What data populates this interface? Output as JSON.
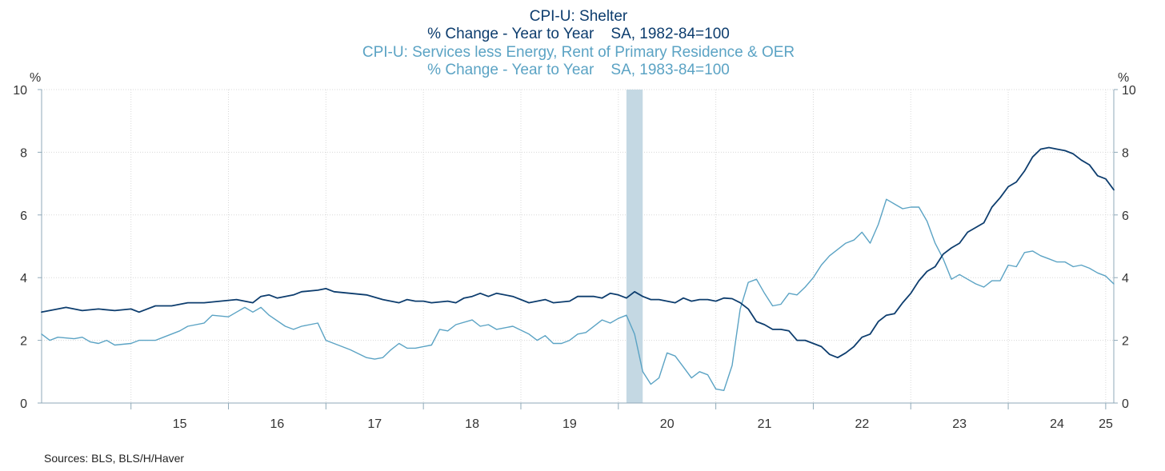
{
  "titles": {
    "line1": "CPI-U: Shelter",
    "line2": "% Change - Year to Year    SA, 1982-84=100",
    "line3": "CPI-U: Services less Energy, Rent of Primary Residence & OER",
    "line4": "% Change - Year to Year    SA, 1983-84=100"
  },
  "axes": {
    "left_unit": "%",
    "right_unit": "%"
  },
  "source": "Sources:  BLS, BLS/H/Haver",
  "colors": {
    "shelter": "#0d3d6e",
    "services": "#5ba3c4",
    "recession": "#c4d8e3",
    "grid": "#d8d8d8",
    "axis": "#8fa9b8",
    "title_dark": "#0d3d6e",
    "title_light": "#5ba3c4"
  },
  "chart_data": {
    "type": "line",
    "x_range": [
      2014.083,
      2025.083
    ],
    "ylim": [
      0,
      10
    ],
    "y_ticks": [
      0,
      2,
      4,
      6,
      8,
      10
    ],
    "x_tick_labels": [
      "15",
      "16",
      "17",
      "18",
      "19",
      "20",
      "21",
      "22",
      "23",
      "24",
      "25"
    ],
    "x_tick_label_years": [
      2015,
      2016,
      2017,
      2018,
      2019,
      2020,
      2021,
      2022,
      2023,
      2024,
      2025
    ],
    "grid": true,
    "recession": {
      "start": 2020.083,
      "end": 2020.25
    },
    "series": [
      {
        "name": "CPI-U: Shelter",
        "points": [
          [
            2014.083,
            2.9
          ],
          [
            2014.25,
            3.0
          ],
          [
            2014.333,
            3.05
          ],
          [
            2014.5,
            2.95
          ],
          [
            2014.667,
            3.0
          ],
          [
            2014.833,
            2.95
          ],
          [
            2015.0,
            3.0
          ],
          [
            2015.083,
            2.9
          ],
          [
            2015.25,
            3.1
          ],
          [
            2015.417,
            3.1
          ],
          [
            2015.583,
            3.2
          ],
          [
            2015.75,
            3.2
          ],
          [
            2015.917,
            3.25
          ],
          [
            2016.083,
            3.3
          ],
          [
            2016.25,
            3.2
          ],
          [
            2016.333,
            3.4
          ],
          [
            2016.417,
            3.45
          ],
          [
            2016.5,
            3.35
          ],
          [
            2016.667,
            3.45
          ],
          [
            2016.75,
            3.55
          ],
          [
            2016.917,
            3.6
          ],
          [
            2017.0,
            3.65
          ],
          [
            2017.083,
            3.55
          ],
          [
            2017.25,
            3.5
          ],
          [
            2017.417,
            3.45
          ],
          [
            2017.583,
            3.3
          ],
          [
            2017.75,
            3.2
          ],
          [
            2017.833,
            3.3
          ],
          [
            2017.917,
            3.25
          ],
          [
            2018.0,
            3.25
          ],
          [
            2018.083,
            3.2
          ],
          [
            2018.25,
            3.25
          ],
          [
            2018.333,
            3.2
          ],
          [
            2018.417,
            3.35
          ],
          [
            2018.5,
            3.4
          ],
          [
            2018.583,
            3.5
          ],
          [
            2018.667,
            3.4
          ],
          [
            2018.75,
            3.5
          ],
          [
            2018.917,
            3.4
          ],
          [
            2019.083,
            3.2
          ],
          [
            2019.25,
            3.3
          ],
          [
            2019.333,
            3.2
          ],
          [
            2019.5,
            3.25
          ],
          [
            2019.583,
            3.4
          ],
          [
            2019.75,
            3.4
          ],
          [
            2019.833,
            3.35
          ],
          [
            2019.917,
            3.5
          ],
          [
            2020.0,
            3.45
          ],
          [
            2020.083,
            3.35
          ],
          [
            2020.167,
            3.55
          ],
          [
            2020.25,
            3.4
          ],
          [
            2020.333,
            3.3
          ],
          [
            2020.417,
            3.3
          ],
          [
            2020.5,
            3.25
          ],
          [
            2020.583,
            3.2
          ],
          [
            2020.667,
            3.35
          ],
          [
            2020.75,
            3.25
          ],
          [
            2020.833,
            3.3
          ],
          [
            2020.917,
            3.3
          ],
          [
            2021.0,
            3.25
          ],
          [
            2021.083,
            3.35
          ],
          [
            2021.167,
            3.33
          ],
          [
            2021.25,
            3.2
          ],
          [
            2021.333,
            3.0
          ],
          [
            2021.417,
            2.6
          ],
          [
            2021.5,
            2.5
          ],
          [
            2021.583,
            2.35
          ],
          [
            2021.667,
            2.35
          ],
          [
            2021.75,
            2.3
          ],
          [
            2021.833,
            2.0
          ],
          [
            2021.917,
            2.0
          ],
          [
            2022.0,
            1.9
          ],
          [
            2022.083,
            1.8
          ],
          [
            2022.167,
            1.55
          ],
          [
            2022.25,
            1.45
          ],
          [
            2022.333,
            1.6
          ],
          [
            2022.417,
            1.8
          ],
          [
            2022.5,
            2.1
          ],
          [
            2022.583,
            2.2
          ],
          [
            2022.667,
            2.6
          ],
          [
            2022.75,
            2.8
          ],
          [
            2022.833,
            2.85
          ],
          [
            2022.917,
            3.2
          ],
          [
            2023.0,
            3.5
          ],
          [
            2023.083,
            3.9
          ],
          [
            2023.167,
            4.2
          ],
          [
            2023.25,
            4.35
          ],
          [
            2023.333,
            4.75
          ],
          [
            2023.417,
            4.95
          ],
          [
            2023.5,
            5.1
          ],
          [
            2023.583,
            5.45
          ],
          [
            2023.667,
            5.6
          ],
          [
            2023.75,
            5.75
          ],
          [
            2023.833,
            6.25
          ],
          [
            2023.917,
            6.55
          ],
          [
            2024.0,
            6.9
          ],
          [
            2024.083,
            7.05
          ],
          [
            2024.167,
            7.4
          ],
          [
            2024.25,
            7.85
          ],
          [
            2024.333,
            8.1
          ],
          [
            2024.417,
            8.15
          ],
          [
            2024.5,
            8.1
          ],
          [
            2024.583,
            8.05
          ],
          [
            2024.667,
            7.95
          ],
          [
            2024.75,
            7.75
          ],
          [
            2024.833,
            7.6
          ],
          [
            2024.917,
            7.25
          ],
          [
            2025.0,
            7.15
          ],
          [
            2025.083,
            6.8
          ]
        ]
      },
      {
        "name": "CPI-U: Services less Energy, Rent of Primary Residence & OER",
        "points": [
          [
            2014.083,
            2.2
          ],
          [
            2014.167,
            2.0
          ],
          [
            2014.25,
            2.1
          ],
          [
            2014.417,
            2.05
          ],
          [
            2014.5,
            2.1
          ],
          [
            2014.583,
            1.95
          ],
          [
            2014.667,
            1.9
          ],
          [
            2014.75,
            2.0
          ],
          [
            2014.833,
            1.85
          ],
          [
            2015.0,
            1.9
          ],
          [
            2015.083,
            2.0
          ],
          [
            2015.25,
            2.0
          ],
          [
            2015.333,
            2.1
          ],
          [
            2015.5,
            2.3
          ],
          [
            2015.583,
            2.45
          ],
          [
            2015.75,
            2.55
          ],
          [
            2015.833,
            2.8
          ],
          [
            2016.0,
            2.75
          ],
          [
            2016.083,
            2.9
          ],
          [
            2016.167,
            3.05
          ],
          [
            2016.25,
            2.9
          ],
          [
            2016.333,
            3.05
          ],
          [
            2016.417,
            2.8
          ],
          [
            2016.583,
            2.45
          ],
          [
            2016.667,
            2.35
          ],
          [
            2016.75,
            2.45
          ],
          [
            2016.917,
            2.55
          ],
          [
            2017.0,
            2.0
          ],
          [
            2017.25,
            1.7
          ],
          [
            2017.417,
            1.45
          ],
          [
            2017.5,
            1.4
          ],
          [
            2017.583,
            1.45
          ],
          [
            2017.667,
            1.7
          ],
          [
            2017.75,
            1.9
          ],
          [
            2017.833,
            1.75
          ],
          [
            2017.917,
            1.75
          ],
          [
            2018.0,
            1.8
          ],
          [
            2018.083,
            1.85
          ],
          [
            2018.167,
            2.35
          ],
          [
            2018.25,
            2.3
          ],
          [
            2018.333,
            2.5
          ],
          [
            2018.5,
            2.65
          ],
          [
            2018.583,
            2.45
          ],
          [
            2018.667,
            2.5
          ],
          [
            2018.75,
            2.35
          ],
          [
            2018.917,
            2.45
          ],
          [
            2019.083,
            2.2
          ],
          [
            2019.167,
            2.0
          ],
          [
            2019.25,
            2.15
          ],
          [
            2019.333,
            1.9
          ],
          [
            2019.417,
            1.9
          ],
          [
            2019.5,
            2.0
          ],
          [
            2019.583,
            2.2
          ],
          [
            2019.667,
            2.25
          ],
          [
            2019.833,
            2.65
          ],
          [
            2019.917,
            2.55
          ],
          [
            2020.0,
            2.7
          ],
          [
            2020.083,
            2.8
          ],
          [
            2020.167,
            2.2
          ],
          [
            2020.25,
            1.0
          ],
          [
            2020.333,
            0.6
          ],
          [
            2020.417,
            0.8
          ],
          [
            2020.5,
            1.6
          ],
          [
            2020.583,
            1.5
          ],
          [
            2020.667,
            1.15
          ],
          [
            2020.75,
            0.8
          ],
          [
            2020.833,
            1.0
          ],
          [
            2020.917,
            0.9
          ],
          [
            2021.0,
            0.45
          ],
          [
            2021.083,
            0.4
          ],
          [
            2021.167,
            1.2
          ],
          [
            2021.25,
            3.0
          ],
          [
            2021.333,
            3.85
          ],
          [
            2021.417,
            3.95
          ],
          [
            2021.5,
            3.5
          ],
          [
            2021.583,
            3.1
          ],
          [
            2021.667,
            3.15
          ],
          [
            2021.75,
            3.5
          ],
          [
            2021.833,
            3.45
          ],
          [
            2021.917,
            3.7
          ],
          [
            2022.0,
            4.0
          ],
          [
            2022.083,
            4.4
          ],
          [
            2022.167,
            4.7
          ],
          [
            2022.25,
            4.9
          ],
          [
            2022.333,
            5.1
          ],
          [
            2022.417,
            5.2
          ],
          [
            2022.5,
            5.45
          ],
          [
            2022.583,
            5.1
          ],
          [
            2022.667,
            5.7
          ],
          [
            2022.75,
            6.5
          ],
          [
            2022.833,
            6.35
          ],
          [
            2022.917,
            6.2
          ],
          [
            2023.0,
            6.25
          ],
          [
            2023.083,
            6.25
          ],
          [
            2023.167,
            5.8
          ],
          [
            2023.25,
            5.1
          ],
          [
            2023.333,
            4.6
          ],
          [
            2023.417,
            3.95
          ],
          [
            2023.5,
            4.1
          ],
          [
            2023.583,
            3.95
          ],
          [
            2023.667,
            3.8
          ],
          [
            2023.75,
            3.7
          ],
          [
            2023.833,
            3.9
          ],
          [
            2023.917,
            3.9
          ],
          [
            2024.0,
            4.4
          ],
          [
            2024.083,
            4.35
          ],
          [
            2024.167,
            4.8
          ],
          [
            2024.25,
            4.85
          ],
          [
            2024.333,
            4.7
          ],
          [
            2024.417,
            4.6
          ],
          [
            2024.5,
            4.5
          ],
          [
            2024.583,
            4.5
          ],
          [
            2024.667,
            4.35
          ],
          [
            2024.75,
            4.4
          ],
          [
            2024.833,
            4.3
          ],
          [
            2024.917,
            4.15
          ],
          [
            2025.0,
            4.05
          ],
          [
            2025.083,
            3.8
          ]
        ]
      }
    ]
  }
}
